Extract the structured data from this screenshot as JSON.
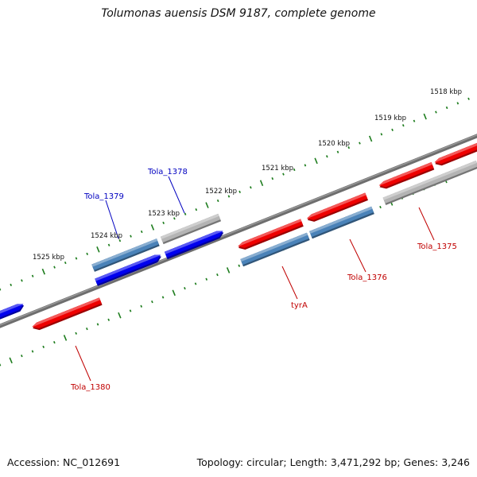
{
  "title": "Tolumonas auensis DSM 9187, complete genome",
  "footer": {
    "accession": "Accession: NC_012691",
    "summary": "Topology: circular; Length: 3,471,292 bp; Genes: 3,246"
  },
  "scale_labels": [
    "1518 kbp",
    "1519 kbp",
    "1520 kbp",
    "1521 kbp",
    "1522 kbp",
    "1523 kbp",
    "1524 kbp",
    "1525 kbp"
  ],
  "gene_labels": [
    {
      "text": "Tola_1378",
      "color": "#0000c0"
    },
    {
      "text": "Tola_1379",
      "color": "#0000c0"
    },
    {
      "text": "Tola_1375",
      "color": "#c00000"
    },
    {
      "text": "Tola_1376",
      "color": "#c00000"
    },
    {
      "text": "tyrA",
      "color": "#c00000"
    },
    {
      "text": "Tola_1380",
      "color": "#c00000"
    }
  ],
  "colors": {
    "backbone": "#707070",
    "tick": "#1e7d1e",
    "forward_cds": "#0000ee",
    "reverse_cds": "#ee0000",
    "steelblue_feature": "#4a82b8",
    "gray_feature": "#b4b4b4"
  }
}
